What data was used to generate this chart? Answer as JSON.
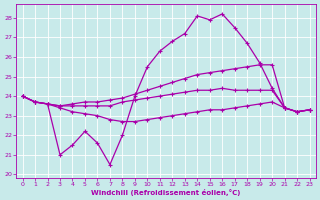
{
  "background_color": "#c8eaea",
  "grid_color": "#ffffff",
  "line_color": "#aa00aa",
  "xlabel": "Windchill (Refroidissement éolien,°C)",
  "xlim_min": -0.5,
  "xlim_max": 23.5,
  "ylim_min": 19.8,
  "ylim_max": 28.7,
  "yticks": [
    20,
    21,
    22,
    23,
    24,
    25,
    26,
    27,
    28
  ],
  "xticks": [
    0,
    1,
    2,
    3,
    4,
    5,
    6,
    7,
    8,
    9,
    10,
    11,
    12,
    13,
    14,
    15,
    16,
    17,
    18,
    19,
    20,
    21,
    22,
    23
  ],
  "series": [
    [
      24.0,
      23.7,
      23.6,
      21.0,
      21.5,
      22.2,
      21.6,
      20.5,
      22.0,
      24.0,
      25.5,
      26.3,
      26.8,
      27.2,
      28.1,
      27.9,
      28.2,
      27.5,
      26.7,
      25.7,
      24.4,
      23.4,
      23.2,
      23.3
    ],
    [
      24.0,
      23.7,
      23.6,
      23.5,
      23.6,
      23.7,
      23.7,
      23.8,
      23.9,
      24.1,
      24.3,
      24.5,
      24.7,
      24.9,
      25.1,
      25.2,
      25.3,
      25.4,
      25.5,
      25.6,
      25.6,
      23.4,
      23.2,
      23.3
    ],
    [
      24.0,
      23.7,
      23.6,
      23.5,
      23.5,
      23.5,
      23.5,
      23.5,
      23.7,
      23.8,
      23.9,
      24.0,
      24.1,
      24.2,
      24.3,
      24.3,
      24.4,
      24.3,
      24.3,
      24.3,
      24.3,
      23.4,
      23.2,
      23.3
    ],
    [
      24.0,
      23.7,
      23.6,
      23.4,
      23.2,
      23.1,
      23.0,
      22.8,
      22.7,
      22.7,
      22.8,
      22.9,
      23.0,
      23.1,
      23.2,
      23.3,
      23.3,
      23.4,
      23.5,
      23.6,
      23.7,
      23.4,
      23.2,
      23.3
    ]
  ]
}
